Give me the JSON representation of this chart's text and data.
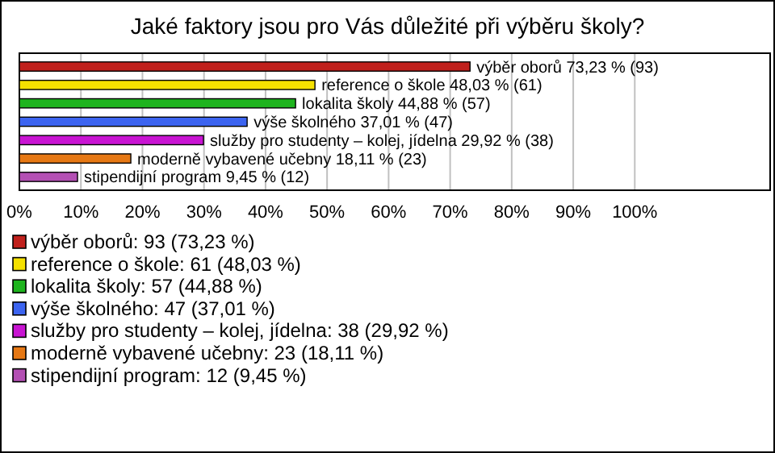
{
  "chart_data": {
    "type": "bar",
    "orientation": "horizontal",
    "title": "Jaké faktory jsou pro Vás důležité při výběru školy?",
    "categories": [
      null,
      null,
      null,
      null,
      null,
      null,
      null
    ],
    "series": [
      {
        "name": "výběr oborů: 93 (73,23 %)",
        "color": "#c0201c",
        "values": [
          73.23,
          null,
          null,
          null,
          null,
          null,
          null
        ],
        "value_labels": [
          "výběr oborů 73,23 % (93)",
          null,
          null,
          null,
          null,
          null,
          null
        ]
      },
      {
        "name": "reference o škole: 61 (48,03 %)",
        "color": "#f5e100",
        "values": [
          null,
          48.03,
          null,
          null,
          null,
          null,
          null
        ],
        "value_labels": [
          null,
          "reference o škole 48,03 % (61)",
          null,
          null,
          null,
          null,
          null
        ]
      },
      {
        "name": "lokalita školy: 57 (44,88 %)",
        "color": "#1eb41e",
        "values": [
          null,
          null,
          44.88,
          null,
          null,
          null,
          null
        ],
        "value_labels": [
          null,
          null,
          "lokalita školy 44,88 % (57)",
          null,
          null,
          null,
          null
        ]
      },
      {
        "name": "výše školného: 47 (37,01 %)",
        "color": "#3c64f0",
        "values": [
          null,
          null,
          null,
          37.01,
          null,
          null,
          null
        ],
        "value_labels": [
          null,
          null,
          null,
          "výše školného 37,01 % (47)",
          null,
          null,
          null
        ]
      },
      {
        "name": "služby pro studenty – kolej, jídelna: 38 (29,92 %)",
        "color": "#c814d2",
        "values": [
          null,
          null,
          null,
          null,
          29.92,
          null,
          null
        ],
        "value_labels": [
          null,
          null,
          null,
          null,
          "služby pro studenty – kolej, jídelna 29,92 % (38)",
          null,
          null
        ]
      },
      {
        "name": "moderně vybavené učebny: 23 (18,11 %)",
        "color": "#e67814",
        "values": [
          null,
          null,
          null,
          null,
          null,
          18.11,
          null
        ],
        "value_labels": [
          null,
          null,
          null,
          null,
          null,
          "moderně vybavené učebny 18,11 % (23)",
          null
        ]
      },
      {
        "name": "stipendijní program: 12 (9,45 %)",
        "color": "#b450b4",
        "values": [
          null,
          null,
          null,
          null,
          null,
          null,
          9.45
        ],
        "value_labels": [
          null,
          null,
          null,
          null,
          null,
          null,
          "stipendijní program 9,45 % (12)"
        ]
      }
    ],
    "xlim": [
      0,
      122
    ],
    "xticks": [
      {
        "value": 0,
        "label": "0%"
      },
      {
        "value": 10,
        "label": "10%"
      },
      {
        "value": 20,
        "label": "20%"
      },
      {
        "value": 30,
        "label": "30%"
      },
      {
        "value": 40,
        "label": "40%"
      },
      {
        "value": 50,
        "label": "50%"
      },
      {
        "value": 60,
        "label": "60%"
      },
      {
        "value": 70,
        "label": "70%"
      },
      {
        "value": 80,
        "label": "80%"
      },
      {
        "value": 90,
        "label": "90%"
      },
      {
        "value": 100,
        "label": "100%"
      }
    ],
    "grid": "x",
    "legend": "bottom",
    "tick_labels": "x"
  }
}
